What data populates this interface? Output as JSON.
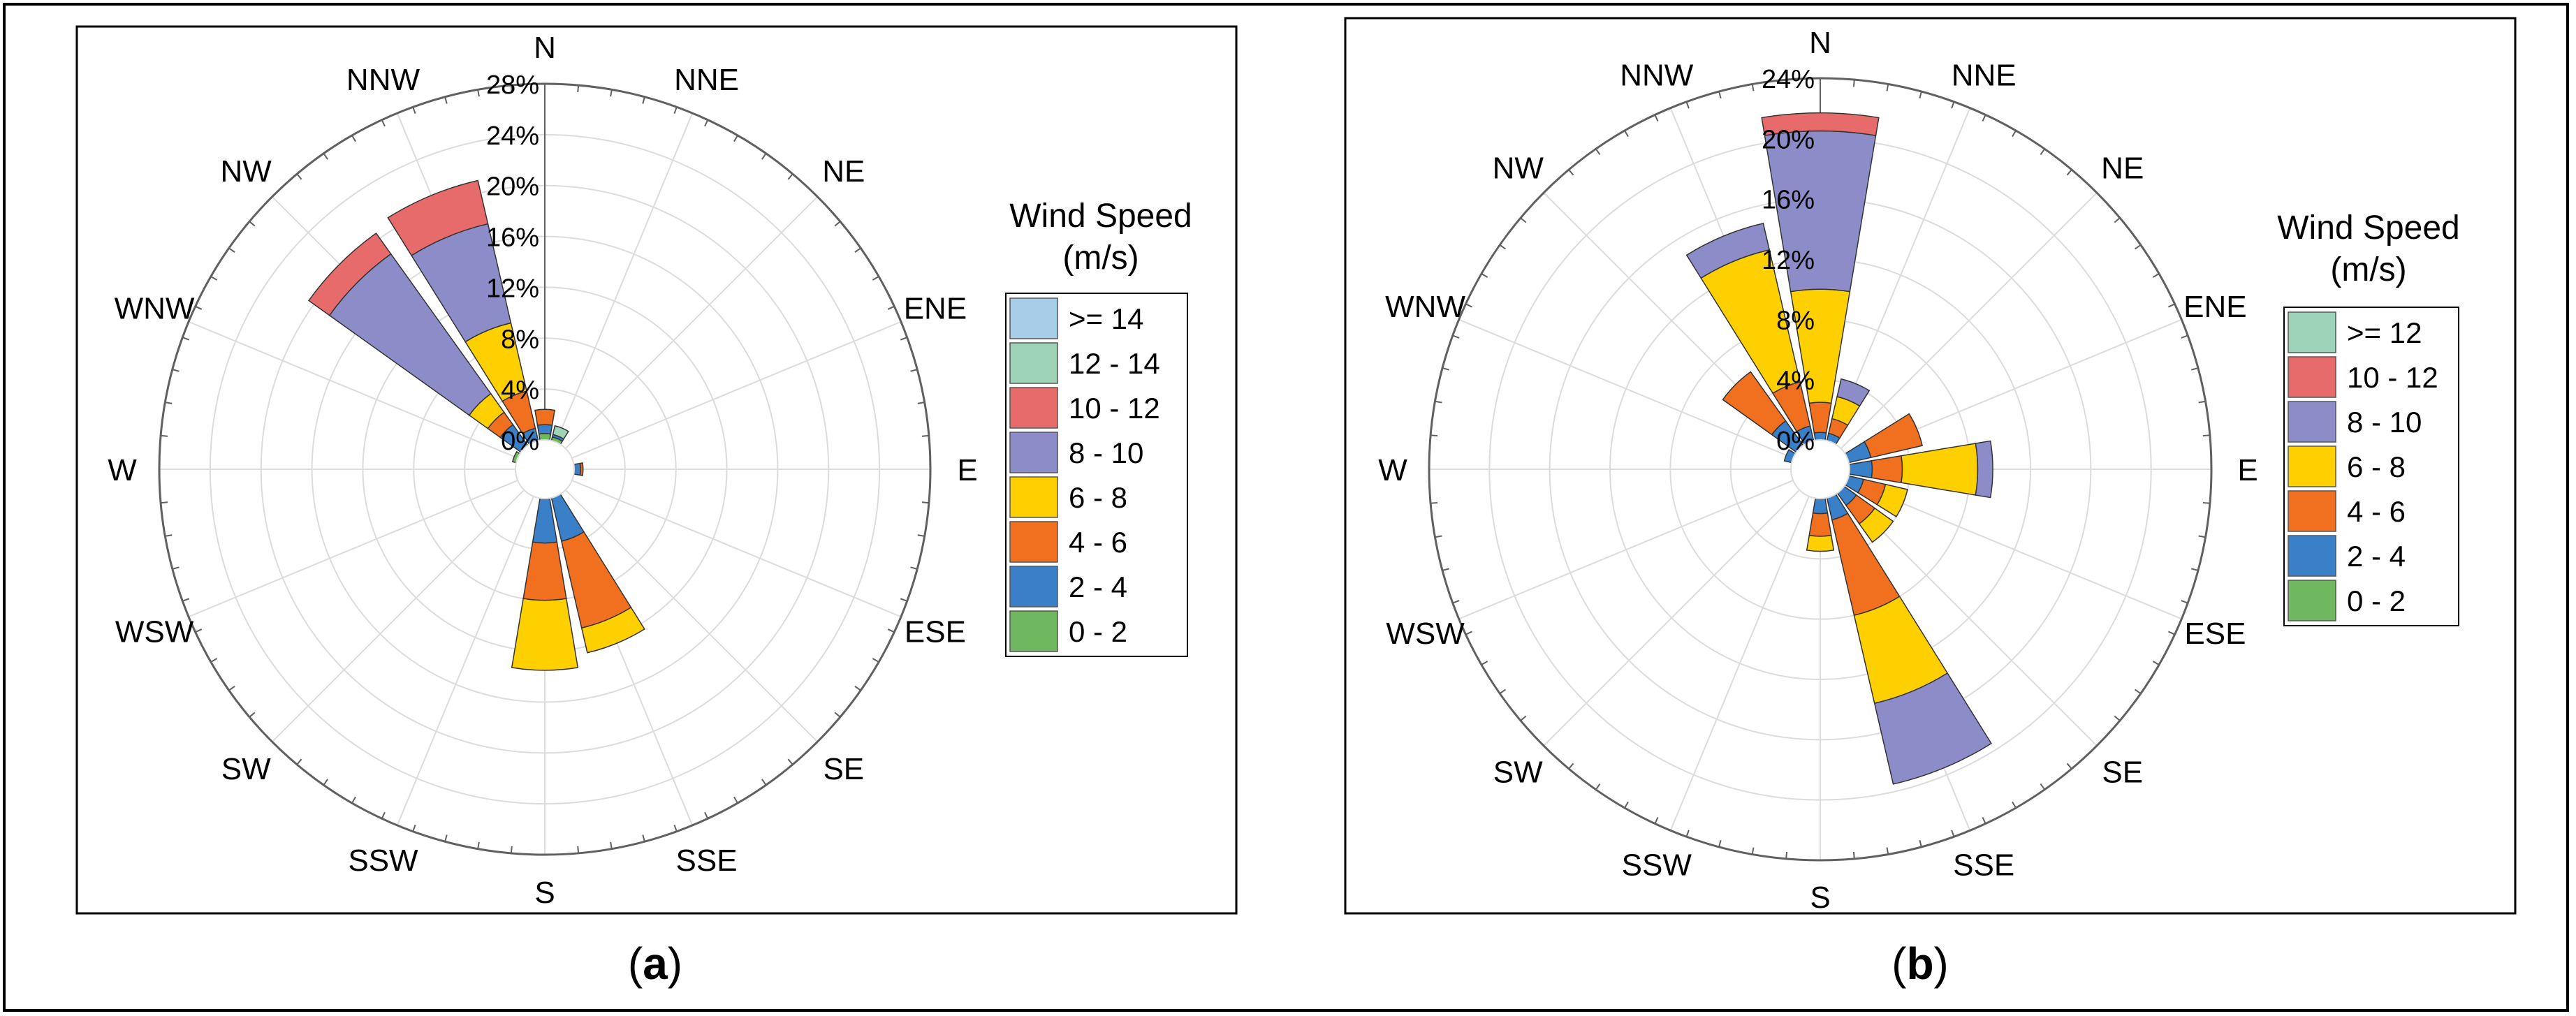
{
  "panels": [
    {
      "caption_letter": "a",
      "legend_title_line1": "Wind Speed",
      "legend_title_line2": "(m/s)"
    },
    {
      "caption_letter": "b",
      "legend_title_line1": "Wind Speed",
      "legend_title_line2": "(m/s)"
    }
  ],
  "chart_data": [
    {
      "type": "wind-rose",
      "directions": [
        "N",
        "NNE",
        "NE",
        "ENE",
        "E",
        "ESE",
        "SE",
        "SSE",
        "S",
        "SSW",
        "SW",
        "WSW",
        "W",
        "WNW",
        "NW",
        "NNW"
      ],
      "radial_ticks": [
        0,
        4,
        8,
        12,
        16,
        20,
        24,
        28
      ],
      "radial_max": 28,
      "radial_unit": "%",
      "legend_title": "Wind Speed (m/s)",
      "bins": [
        {
          "label": ">= 14",
          "color": "#a8cde8"
        },
        {
          "label": "12 - 14",
          "color": "#9fd3b8"
        },
        {
          "label": "10 - 12",
          "color": "#e86b6b"
        },
        {
          "label": "8 - 10",
          "color": "#8c8cc8"
        },
        {
          "label": "6 - 8",
          "color": "#ffd000"
        },
        {
          "label": "4 - 6",
          "color": "#f07020"
        },
        {
          "label": "2 - 4",
          "color": "#3a80c8"
        },
        {
          "label": "0 - 2",
          "color": "#70b860"
        }
      ],
      "series_order": [
        "0 - 2",
        "2 - 4",
        "4 - 6",
        "6 - 8",
        "8 - 10",
        "10 - 12",
        "12 - 14",
        ">= 14"
      ],
      "frequencies": {
        "N": [
          0.5,
          0.7,
          1.2,
          0,
          0,
          0,
          0,
          0
        ],
        "NNE": [
          0.3,
          0.2,
          0,
          0,
          0,
          0,
          0.7,
          0
        ],
        "NE": [
          0,
          0,
          0,
          0,
          0,
          0,
          0,
          0
        ],
        "ENE": [
          0,
          0,
          0,
          0,
          0,
          0,
          0,
          0
        ],
        "E": [
          0,
          0.5,
          0.2,
          0,
          0,
          0,
          0,
          0
        ],
        "ESE": [
          0,
          0,
          0,
          0,
          0,
          0,
          0,
          0
        ],
        "SE": [
          0,
          0,
          0,
          0,
          0,
          0,
          0,
          0
        ],
        "SSE": [
          0,
          3.5,
          7.0,
          2.0,
          0,
          0,
          0,
          0
        ],
        "S": [
          0,
          3.5,
          4.5,
          5.5,
          0,
          0,
          0,
          0
        ],
        "SSW": [
          0,
          0,
          0,
          0,
          0,
          0,
          0,
          0
        ],
        "SW": [
          0,
          0,
          0,
          0,
          0,
          0,
          0,
          0
        ],
        "WSW": [
          0,
          0,
          0,
          0,
          0,
          0,
          0,
          0
        ],
        "W": [
          0,
          0,
          0,
          0,
          0,
          0,
          0,
          0
        ],
        "WNW": [
          0.3,
          0,
          0,
          0,
          0,
          0,
          0,
          0
        ],
        "NW": [
          0,
          2.0,
          1.2,
          1.8,
          13.5,
          2.0,
          0,
          0
        ],
        "NNW": [
          0,
          1.0,
          3.0,
          5.5,
          8.0,
          3.5,
          0,
          0
        ]
      }
    },
    {
      "type": "wind-rose",
      "directions": [
        "N",
        "NNE",
        "NE",
        "ENE",
        "E",
        "ESE",
        "SE",
        "SSE",
        "S",
        "SSW",
        "SW",
        "WSW",
        "W",
        "WNW",
        "NW",
        "NNW"
      ],
      "radial_ticks": [
        0,
        4,
        8,
        12,
        16,
        20,
        24
      ],
      "radial_max": 24,
      "radial_unit": "%",
      "legend_title": "Wind Speed (m/s)",
      "bins": [
        {
          "label": ">= 12",
          "color": "#9fd3b8"
        },
        {
          "label": "10 - 12",
          "color": "#e86b6b"
        },
        {
          "label": "8 - 10",
          "color": "#8c8cc8"
        },
        {
          "label": "6 - 8",
          "color": "#ffd000"
        },
        {
          "label": "4 - 6",
          "color": "#f07020"
        },
        {
          "label": "2 - 4",
          "color": "#3a80c8"
        },
        {
          "label": "0 - 2",
          "color": "#70b860"
        }
      ],
      "series_order": [
        "0 - 2",
        "2 - 4",
        "4 - 6",
        "6 - 8",
        "8 - 10",
        "10 - 12",
        ">= 12"
      ],
      "frequencies": {
        "N": [
          0,
          0.5,
          2.0,
          7.5,
          10.5,
          1.2,
          0
        ],
        "NNE": [
          0,
          0.5,
          1.0,
          1.5,
          1.2,
          0,
          0
        ],
        "NE": [
          0,
          0,
          0,
          0,
          0,
          0,
          0
        ],
        "ENE": [
          0,
          1.5,
          3.5,
          0,
          0,
          0,
          0
        ],
        "E": [
          0,
          1.5,
          2.0,
          5.0,
          1.0,
          0,
          0
        ],
        "ESE": [
          0,
          1.0,
          1.5,
          1.5,
          0,
          0,
          0
        ],
        "SE": [
          0,
          1.0,
          1.5,
          1.5,
          0,
          0,
          0
        ],
        "SSE": [
          0,
          1.5,
          6.5,
          6.0,
          5.5,
          0,
          0
        ],
        "S": [
          0,
          1.0,
          1.5,
          1.0,
          0,
          0,
          0
        ],
        "SSW": [
          0,
          0,
          0,
          0,
          0,
          0,
          0
        ],
        "SW": [
          0,
          0,
          0,
          0,
          0,
          0,
          0
        ],
        "WSW": [
          0,
          0,
          0,
          0,
          0,
          0,
          0
        ],
        "W": [
          0,
          0,
          0,
          0,
          0,
          0,
          0
        ],
        "WNW": [
          0,
          0.5,
          0,
          0,
          0,
          0,
          0
        ],
        "NW": [
          0,
          2.0,
          4.0,
          0,
          0,
          0,
          0
        ],
        "NNW": [
          0,
          1.0,
          3.0,
          9.0,
          1.8,
          0,
          0
        ]
      }
    }
  ]
}
